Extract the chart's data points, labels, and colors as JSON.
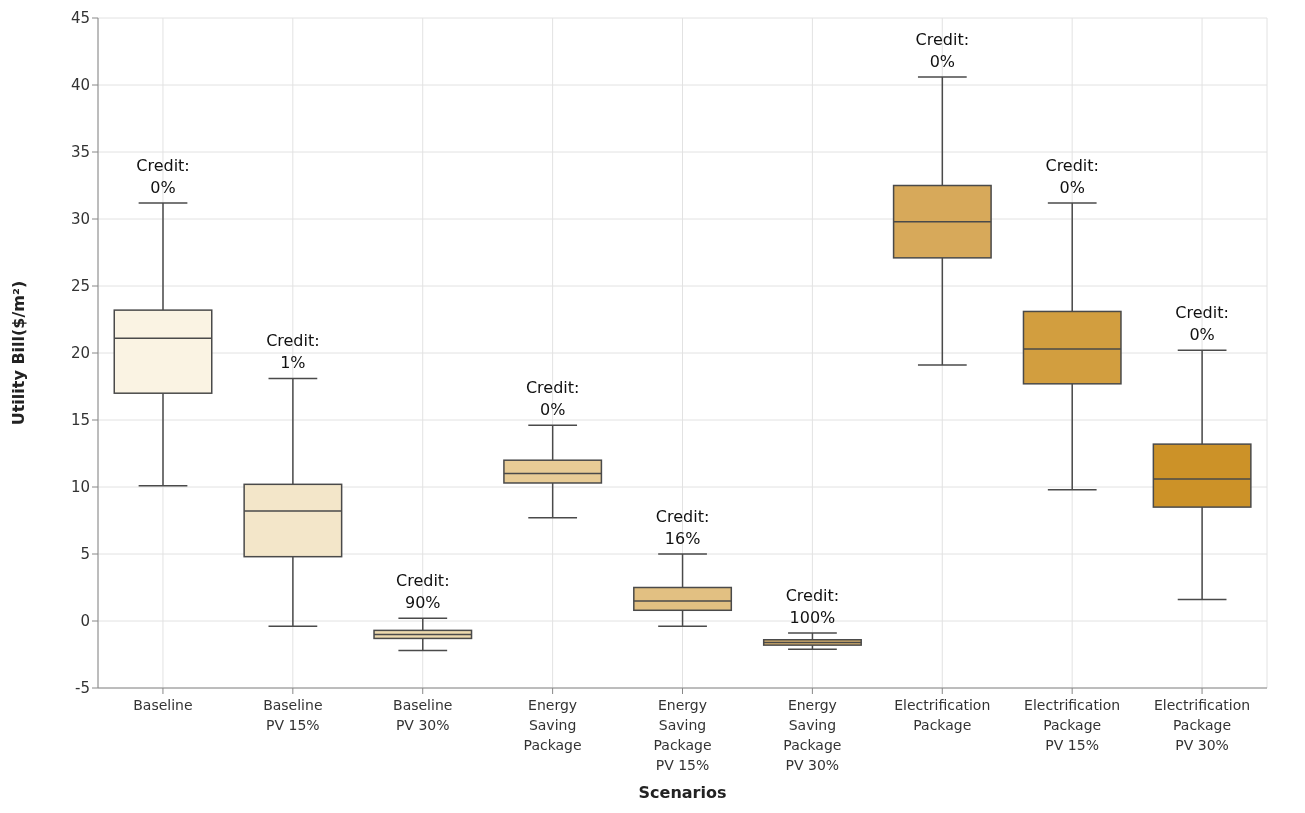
{
  "chart_data": {
    "type": "box",
    "xlabel": "Scenarios",
    "ylabel": "Utility Bill($/m²)",
    "categories": [
      "Baseline",
      "Baseline\nPV 15%",
      "Baseline\nPV 30%",
      "Energy\nSaving\nPackage",
      "Energy\nSaving\nPackage\nPV 15%",
      "Energy\nSaving\nPackage\nPV 30%",
      "Electrification\nPackage",
      "Electrification\nPackage\nPV 15%",
      "Electrification\nPackage\nPV 30%"
    ],
    "boxes": [
      {
        "low": 10.1,
        "q1": 17.0,
        "median": 21.1,
        "q3": 23.2,
        "high": 31.2
      },
      {
        "low": -0.4,
        "q1": 4.8,
        "median": 8.2,
        "q3": 10.2,
        "high": 18.1
      },
      {
        "low": -2.2,
        "q1": -1.3,
        "median": -1.0,
        "q3": -0.7,
        "high": 0.2
      },
      {
        "low": 7.7,
        "q1": 10.3,
        "median": 11.0,
        "q3": 12.0,
        "high": 14.6
      },
      {
        "low": -0.4,
        "q1": 0.8,
        "median": 1.5,
        "q3": 2.5,
        "high": 5.0
      },
      {
        "low": -2.1,
        "q1": -1.8,
        "median": -1.6,
        "q3": -1.4,
        "high": -0.9
      },
      {
        "low": 19.1,
        "q1": 27.1,
        "median": 29.8,
        "q3": 32.5,
        "high": 40.6
      },
      {
        "low": 9.8,
        "q1": 17.7,
        "median": 20.3,
        "q3": 23.1,
        "high": 31.2
      },
      {
        "low": 1.6,
        "q1": 8.5,
        "median": 10.6,
        "q3": 13.2,
        "high": 20.2
      }
    ],
    "colors": [
      "#faf3e3",
      "#f3e6c9",
      "#ecd9ae",
      "#e8cc96",
      "#e2c082",
      "#dbb36e",
      "#d7a95a",
      "#d29e3f",
      "#cc9228"
    ],
    "ylim": [
      -5,
      45
    ],
    "yticks": [
      -5,
      0,
      5,
      10,
      15,
      20,
      25,
      30,
      35,
      40,
      45
    ],
    "grid": true,
    "annotations": [
      {
        "text": "Credit:\n0%",
        "x": "Baseline",
        "y": 31.2
      },
      {
        "text": "Credit:\n1%",
        "x": "Baseline\nPV 15%",
        "y": 18.1
      },
      {
        "text": "Credit:\n90%",
        "x": "Baseline\nPV 30%",
        "y": 0.2
      },
      {
        "text": "Credit:\n0%",
        "x": "Energy\nSaving\nPackage",
        "y": 14.6
      },
      {
        "text": "Credit:\n16%",
        "x": "Energy\nSaving\nPackage\nPV 15%",
        "y": 5.0
      },
      {
        "text": "Credit:\n100%",
        "x": "Energy\nSaving\nPackage\nPV 30%",
        "y": -0.9
      },
      {
        "text": "Credit:\n0%",
        "x": "Electrification\nPackage",
        "y": 40.6
      },
      {
        "text": "Credit:\n0%",
        "x": "Electrification\nPackage\nPV 15%",
        "y": 31.2
      },
      {
        "text": "Credit:\n0%",
        "x": "Electrification\nPackage\nPV 30%",
        "y": 20.2
      }
    ]
  }
}
